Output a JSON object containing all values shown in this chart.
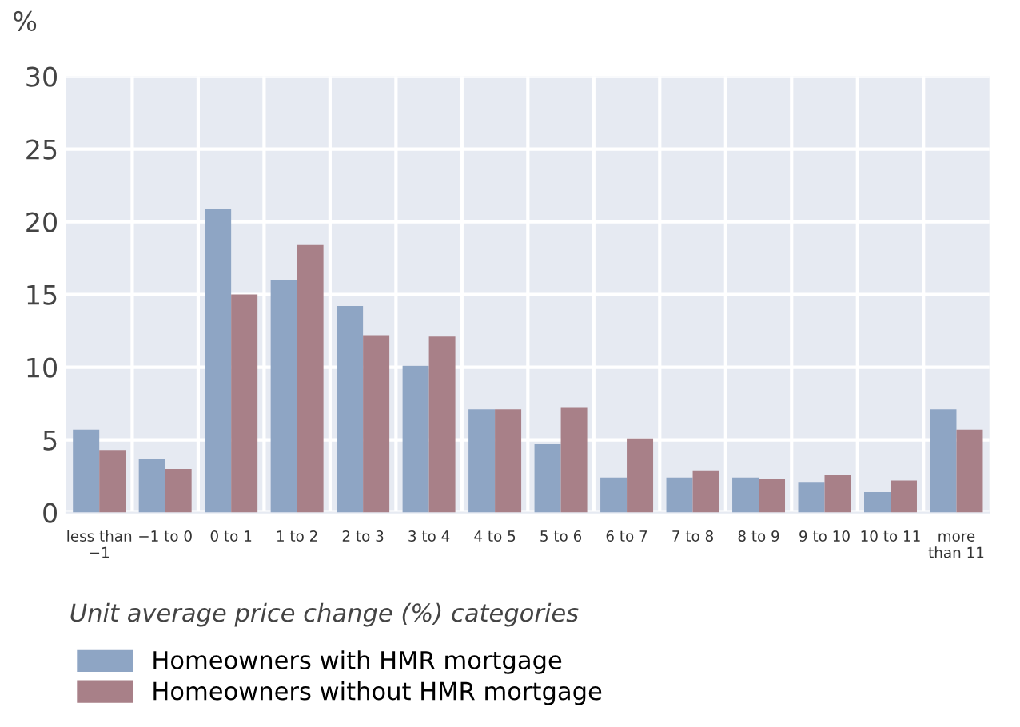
{
  "chart_data": {
    "type": "bar",
    "ylabel": "%",
    "xlabel": "Unit average price change (%) categories",
    "categories": [
      "less than\n−1",
      "−1 to 0",
      "0 to 1",
      "1 to 2",
      "2 to 3",
      "3 to 4",
      "4 to 5",
      "5 to 6",
      "6 to 7",
      "7 to 8",
      "8 to 9",
      "9 to 10",
      "10 to 11",
      "more\nthan 11"
    ],
    "series": [
      {
        "name": "Homeowners with HMR mortgage",
        "color": "#8ea5c4",
        "values": [
          5.7,
          3.7,
          20.9,
          16.0,
          14.2,
          10.1,
          7.1,
          4.7,
          2.4,
          2.4,
          2.4,
          2.1,
          1.4,
          7.1
        ]
      },
      {
        "name": "Homeowners without HMR mortgage",
        "color": "#a88088",
        "values": [
          4.3,
          3.0,
          15.0,
          18.4,
          12.2,
          12.1,
          7.1,
          7.2,
          5.1,
          2.9,
          2.3,
          2.6,
          2.2,
          5.7
        ]
      }
    ],
    "ylim": [
      0,
      30
    ],
    "yticks": [
      0,
      5,
      10,
      15,
      20,
      25,
      30
    ],
    "grid": true,
    "legend": "bottom left"
  }
}
